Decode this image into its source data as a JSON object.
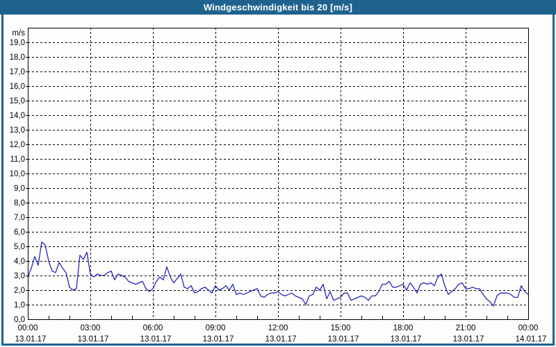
{
  "title": "Windgeschwindigkeit bis 20 [m/s]",
  "colors": {
    "titlebar": "#1f628e",
    "frame": "#1f628e",
    "line": "#2424c0",
    "grid": "#000000",
    "axis": "#000000",
    "plot_bg": "#fefefc",
    "page_bg": "#fdfdfc",
    "title_text": "#ffffff",
    "tick_text": "#000000"
  },
  "y_axis": {
    "unit_label": "m/s",
    "tick_labels": [
      "19,0",
      "18,0",
      "17,0",
      "16,0",
      "15,0",
      "14,0",
      "13,0",
      "12,0",
      "11,0",
      "10,0",
      "9,0",
      "8,0",
      "7,0",
      "6,0",
      "5,0",
      "4,0",
      "3,0",
      "2,0",
      "1,0",
      "0,0"
    ]
  },
  "x_axis": {
    "tick_times": [
      "00:00",
      "03:00",
      "06:00",
      "09:00",
      "12:00",
      "15:00",
      "18:00",
      "21:00",
      "00:00"
    ],
    "tick_dates": [
      "13.01.17",
      "13.01.17",
      "13.01.17",
      "13.01.17",
      "13.01.17",
      "13.01.17",
      "13.01.17",
      "13.01.17",
      "14.01.17"
    ]
  },
  "chart_data": {
    "type": "line",
    "title": "Windgeschwindigkeit bis 20 [m/s]",
    "ylabel": "m/s",
    "ylim": [
      0,
      20
    ],
    "y_gridline_step": 1,
    "x_hours_span": 24,
    "x_gridline_step_hours": 3,
    "x_start": "13.01.17 00:00",
    "x_end": "14.01.17 00:00",
    "sample_interval_minutes": 10,
    "x_tick_labels": [
      "00:00",
      "03:00",
      "06:00",
      "09:00",
      "12:00",
      "15:00",
      "18:00",
      "21:00",
      "00:00"
    ],
    "x_tick_dates": [
      "13.01.17",
      "13.01.17",
      "13.01.17",
      "13.01.17",
      "13.01.17",
      "13.01.17",
      "13.01.17",
      "13.01.17",
      "14.01.17"
    ],
    "grid": "dashed",
    "legend": "none",
    "series": [
      {
        "name": "Windgeschwindigkeit",
        "unit": "m/s",
        "values": [
          2.9,
          3.5,
          4.3,
          3.7,
          5.3,
          5.1,
          4.0,
          3.3,
          3.2,
          3.9,
          3.5,
          3.2,
          2.2,
          2.0,
          2.1,
          4.4,
          4.1,
          4.6,
          3.1,
          2.9,
          3.1,
          3.0,
          3.0,
          3.2,
          3.3,
          2.7,
          3.1,
          3.0,
          2.9,
          2.6,
          2.5,
          2.4,
          2.5,
          2.6,
          2.1,
          1.9,
          2.1,
          2.6,
          2.9,
          2.7,
          3.6,
          2.9,
          2.5,
          2.8,
          3.1,
          2.2,
          2.1,
          2.3,
          1.8,
          1.9,
          2.1,
          2.2,
          2.0,
          1.8,
          2.3,
          2.0,
          2.1,
          2.3,
          2.0,
          2.4,
          1.7,
          1.8,
          1.7,
          1.8,
          1.9,
          2.0,
          2.1,
          1.6,
          1.5,
          1.7,
          1.8,
          1.8,
          1.9,
          1.7,
          1.6,
          1.7,
          1.8,
          1.6,
          1.5,
          1.4,
          1.0,
          1.6,
          1.7,
          2.2,
          2.0,
          2.4,
          1.4,
          1.9,
          1.3,
          1.4,
          1.5,
          1.8,
          1.8,
          1.3,
          1.4,
          1.5,
          1.6,
          1.5,
          1.3,
          1.6,
          1.6,
          1.9,
          2.4,
          2.4,
          2.6,
          2.2,
          2.2,
          2.3,
          2.4,
          2.0,
          2.5,
          2.2,
          1.8,
          2.4,
          2.5,
          2.4,
          2.5,
          2.3,
          2.9,
          3.1,
          2.3,
          1.7,
          1.9,
          2.1,
          2.4,
          2.5,
          2.1,
          2.1,
          2.2,
          2.1,
          2.1,
          1.7,
          1.4,
          1.2,
          0.9,
          1.6,
          1.8,
          1.8,
          1.8,
          1.7,
          1.5,
          1.5,
          2.3,
          1.9,
          1.7
        ]
      }
    ]
  }
}
